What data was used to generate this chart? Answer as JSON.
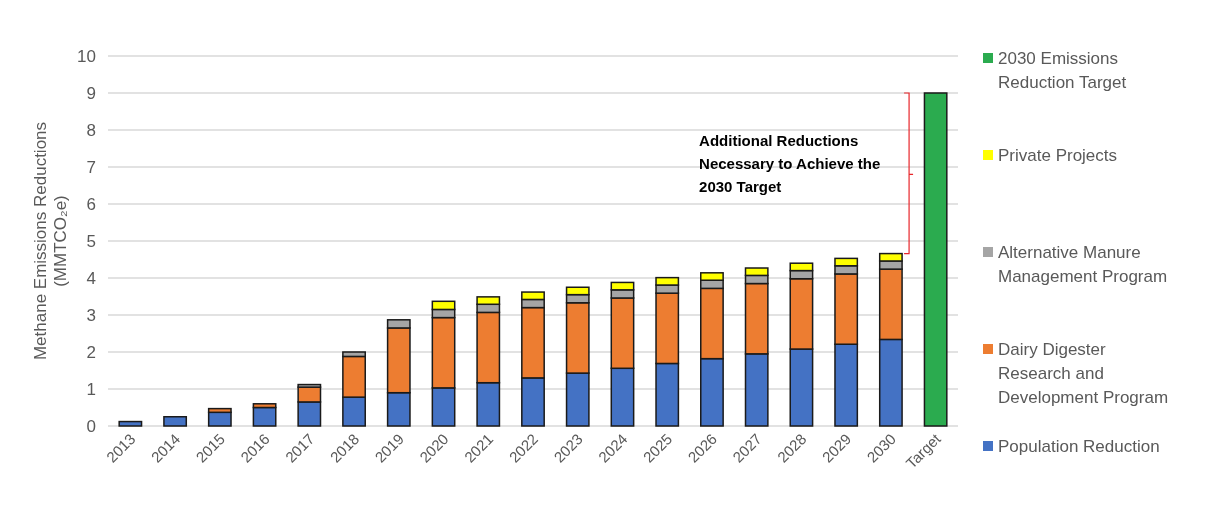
{
  "chart_data": {
    "type": "bar",
    "stacked": true,
    "ylabel": "Methane Emissions Reductions (MMTCO₂e)",
    "categories": [
      "2013",
      "2014",
      "2015",
      "2016",
      "2017",
      "2018",
      "2019",
      "2020",
      "2021",
      "2022",
      "2023",
      "2024",
      "2025",
      "2026",
      "2027",
      "2028",
      "2029",
      "2030",
      "Target"
    ],
    "series": [
      {
        "name": "Population Reduction",
        "color": "#4472c4",
        "values": [
          0.12,
          0.25,
          0.37,
          0.5,
          0.65,
          0.78,
          0.9,
          1.03,
          1.17,
          1.3,
          1.43,
          1.56,
          1.69,
          1.82,
          1.95,
          2.08,
          2.21,
          2.34,
          null
        ]
      },
      {
        "name": "Dairy Digester Research and Development Program",
        "color": "#ed7d31",
        "values": [
          null,
          null,
          0.1,
          0.1,
          0.4,
          1.1,
          1.75,
          1.9,
          1.9,
          1.9,
          1.9,
          1.9,
          1.9,
          1.9,
          1.9,
          1.9,
          1.9,
          1.9,
          null
        ]
      },
      {
        "name": "Alternative Manure Management Program",
        "color": "#a5a5a5",
        "values": [
          null,
          null,
          null,
          null,
          0.07,
          0.12,
          0.22,
          0.22,
          0.22,
          0.22,
          0.22,
          0.22,
          0.22,
          0.22,
          0.22,
          0.22,
          0.22,
          0.22,
          null
        ]
      },
      {
        "name": "Private Projects",
        "color": "#ffff00",
        "values": [
          null,
          null,
          null,
          null,
          null,
          null,
          null,
          0.22,
          0.2,
          0.2,
          0.2,
          0.2,
          0.2,
          0.2,
          0.2,
          0.2,
          0.2,
          0.2,
          null
        ]
      },
      {
        "name": "2030 Emissions Reduction Target",
        "color": "#2bab4f",
        "values": [
          null,
          null,
          null,
          null,
          null,
          null,
          null,
          null,
          null,
          null,
          null,
          null,
          null,
          null,
          null,
          null,
          null,
          null,
          9
        ]
      }
    ],
    "ylim": [
      0,
      10
    ],
    "yticks": [
      0,
      1,
      2,
      3,
      4,
      5,
      6,
      7,
      8,
      9,
      10
    ],
    "grid": "y",
    "legend": "right",
    "annotations": [
      "Additional Reductions Necessary to Achieve the 2030 Target"
    ]
  }
}
